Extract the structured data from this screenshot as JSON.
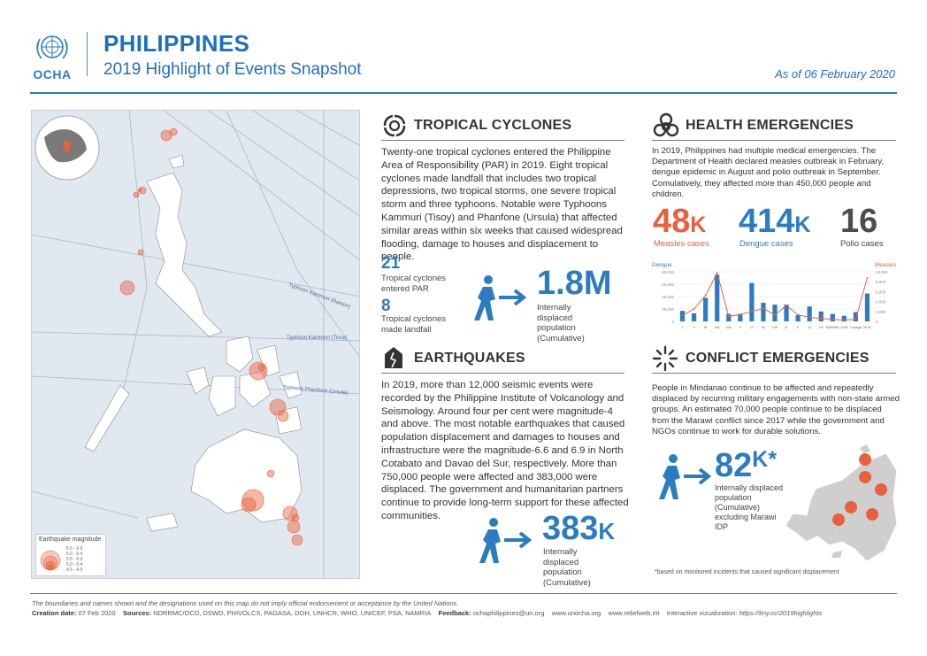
{
  "header": {
    "logo_text": "OCHA",
    "title": "PHILIPPINES",
    "subtitle": "2019 Highlight of Events Snapshot",
    "as_of": "As of 06 February 2020"
  },
  "map": {
    "legend_title": "Earthquake magnitude",
    "legend_items": [
      "6.5 - 6.9",
      "6.0 - 6.4",
      "5.5 - 5.9",
      "5.0 - 5.4",
      "4.5 - 4.9"
    ],
    "typhoon_labels": [
      "Typhoon Kammuri (Ramon)",
      "Typhoon Kammuri (Tisoy)",
      "Typhoon Phanfone (Ursula)"
    ]
  },
  "tropical_cyclones": {
    "title": "TROPICAL CYCLONES",
    "text": "Twenty-one tropical cyclones entered the Philippine Area of Responsibility (PAR) in 2019. Eight tropical cyclones made landfall that includes two tropical depressions, two tropical storms, one severe tropical storm and three typhoons. Notable were Typhoons Kammuri (Tisoy) and Phanfone (Ursula) that affected similar areas within six weeks that caused widespread flooding, damage to houses and displacement to people.",
    "stat1_value": "21",
    "stat1_label": "Tropical cyclones entered PAR",
    "stat2_value": "8",
    "stat2_label": "Tropical cyclones made landfall",
    "idp_value": "1.8M",
    "idp_label": "Internally displaced population (Cumulative)"
  },
  "earthquakes": {
    "title": "EARTHQUAKES",
    "text": "In 2019, more than 12,000 seismic events were recorded by the Philippine Institute of Volcanology and Seismology. Around four per cent were magnitude-4 and above. The most notable earthquakes that caused population displacement and damages to houses and infrastructure were the magnitude-6.6 and 6.9 in North Cotabato and Davao del Sur, respectively. More than 750,000 people were affected and 383,000 were displaced. The government and humanitarian partners continue to provide long-term support for these affected communities.",
    "idp_value": "383",
    "idp_suffix": "K",
    "idp_label": "Internally displaced population (Cumulative)"
  },
  "health": {
    "title": "HEALTH EMERGENCIES",
    "text": "In 2019, Philippines had multiple medical emergencies. The Department of Health declared measles outbreak in February, dengue epidemic in August and polio outbreak in September. Comulatively, they affected more than 450,000 people and children.",
    "measles_value": "48",
    "measles_suffix": "K",
    "measles_label": "Measles cases",
    "dengue_value": "414",
    "dengue_suffix": "K",
    "dengue_label": "Dengue cases",
    "polio_value": "16",
    "polio_label": "Polio cases",
    "colors": {
      "measles": "#e8603c",
      "dengue": "#2c7cc0",
      "polio": "#4d4d4d"
    }
  },
  "chart_data": {
    "type": "bar",
    "title": "",
    "left_axis_label": "Dengue",
    "right_axis_label": "Measles",
    "categories": [
      "I",
      "II",
      "III",
      "IVA",
      "IVB",
      "V",
      "VI",
      "VII",
      "VIII",
      "IX",
      "X",
      "XI",
      "XII",
      "BARMM",
      "CAR",
      "Caraga",
      "NCR"
    ],
    "series": [
      {
        "name": "Dengue",
        "type": "bar",
        "axis": "left",
        "values": [
          17000,
          13000,
          38000,
          75000,
          12000,
          12000,
          62000,
          30000,
          27000,
          27000,
          10000,
          24000,
          16000,
          12000,
          9000,
          15000,
          45000
        ]
      },
      {
        "name": "Measles",
        "type": "line",
        "axis": "right",
        "values": [
          1200,
          2500,
          5200,
          9800,
          1000,
          1400,
          2000,
          2600,
          1300,
          3200,
          1300,
          800,
          600,
          400,
          300,
          400,
          8800
        ]
      }
    ],
    "left_ticks": [
      "80,000",
      "60,000",
      "40,000",
      "20,000",
      "0"
    ],
    "right_ticks": [
      "10,000",
      "8,000",
      "6,000",
      "4,000",
      "2,000",
      "0"
    ],
    "left_ylim": [
      0,
      80000
    ],
    "right_ylim": [
      0,
      10000
    ]
  },
  "conflict": {
    "title": "CONFLICT EMERGENCIES",
    "text": "People in Mindanao continue to be affected and repeatedly displaced by recurring military engagements with non-state armed groups. An estimated 70,000 people continue to be displaced from the Marawi conflict since 2017 while the government and NGOs continue to work for durable solutions.",
    "idp_value": "82",
    "idp_suffix": "K*",
    "idp_label": "Internally displaced population (Cumulative) excluding Marawi IDP",
    "footnote": "*based on monitored incidents that caused significant displacement"
  },
  "footer": {
    "disclaimer": "The boundaries and names shown and the designations used on this map do not imply official endorsement or acceptance by the United Nations.",
    "creation_label": "Creation date:",
    "creation_date": "07 Feb 2020",
    "sources_label": "Sources:",
    "sources": "NDRRMC/OCD, DSWD, PHIVOLCS, PAGASA, DOH, UNHCR, WHO, UNICEF, PSA, NAMRIA",
    "feedback_label": "Feedback:",
    "feedback": "ochaphilippines@un.org",
    "site1": "www.unocha.org",
    "site2": "www.reliefweb.int",
    "viz_label": "Interactive vizualization:",
    "viz_url": "https://tiny.cc/2019highlights"
  }
}
